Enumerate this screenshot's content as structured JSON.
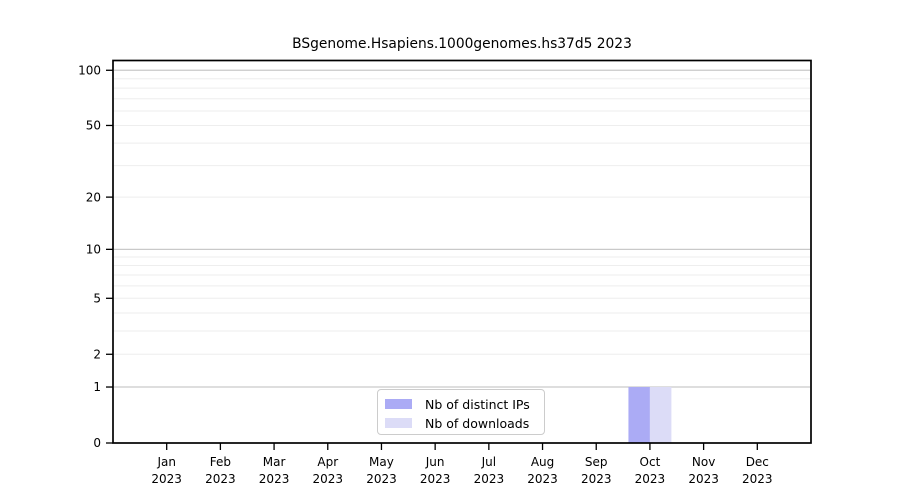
{
  "figure": {
    "background": "#ffffff"
  },
  "chart_data": {
    "type": "bar",
    "title": "BSgenome.Hsapiens.1000genomes.hs37d5 2023",
    "categories": [
      {
        "month": "Jan",
        "year": "2023"
      },
      {
        "month": "Feb",
        "year": "2023"
      },
      {
        "month": "Mar",
        "year": "2023"
      },
      {
        "month": "Apr",
        "year": "2023"
      },
      {
        "month": "May",
        "year": "2023"
      },
      {
        "month": "Jun",
        "year": "2023"
      },
      {
        "month": "Jul",
        "year": "2023"
      },
      {
        "month": "Aug",
        "year": "2023"
      },
      {
        "month": "Sep",
        "year": "2023"
      },
      {
        "month": "Oct",
        "year": "2023"
      },
      {
        "month": "Nov",
        "year": "2023"
      },
      {
        "month": "Dec",
        "year": "2023"
      }
    ],
    "series": [
      {
        "name": "Nb of distinct IPs",
        "color": "#ABABF5",
        "values": [
          0,
          0,
          0,
          0,
          0,
          0,
          0,
          0,
          0,
          1,
          0,
          0
        ]
      },
      {
        "name": "Nb of downloads",
        "color": "#DCDCF7",
        "values": [
          0,
          0,
          0,
          0,
          0,
          0,
          0,
          0,
          0,
          1,
          0,
          0
        ]
      }
    ],
    "xlabel": "",
    "ylabel": "",
    "yscale": "log1p",
    "ylim": [
      0,
      113
    ],
    "yticks": [
      0,
      1,
      2,
      5,
      10,
      20,
      50,
      100
    ],
    "grid": {
      "orientation": "horizontal",
      "major_lines": [
        1,
        10,
        100
      ],
      "minor_lines": [
        2,
        3,
        4,
        5,
        6,
        7,
        8,
        9,
        20,
        30,
        40,
        50,
        60,
        70,
        80,
        90
      ],
      "major_color": "#c9c9c9",
      "minor_color": "#eeeeee"
    },
    "legend": {
      "position": "bottom-center"
    },
    "axis_color": "#000000",
    "bar_group_center": "on-tick"
  }
}
